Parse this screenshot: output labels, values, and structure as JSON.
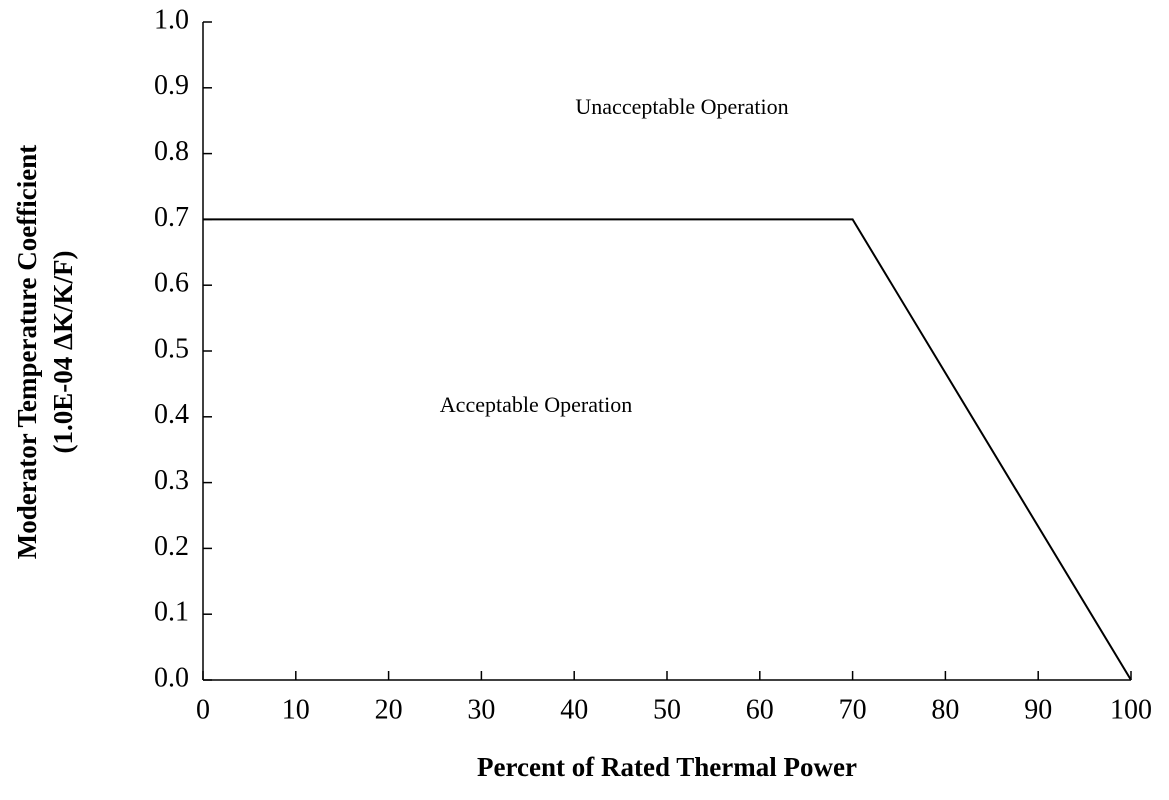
{
  "chart_data": {
    "type": "line",
    "x_label": "Percent of Rated Thermal Power",
    "y_label": [
      "Moderator Temperature  Coefficient",
      "(1.0E-04 ΔK/K/F)"
    ],
    "annotations": [
      "Unacceptable Operation",
      "Acceptable Operation"
    ],
    "x": [
      0,
      70,
      100
    ],
    "values": [
      0.7,
      0.7,
      0
    ],
    "color": "#000000",
    "xlim": [
      0,
      100
    ],
    "xticks": [
      0,
      10,
      20,
      30,
      40,
      50,
      60,
      70,
      80,
      90,
      100
    ],
    "ylim": [
      0,
      1
    ],
    "yticks": [
      {
        "value": 0,
        "label": "0.0"
      },
      0.1,
      0.2,
      0.3,
      0.4,
      0.5,
      0.6,
      0.7,
      0.8,
      0.9,
      {
        "value": 1,
        "label": "1.0"
      }
    ]
  }
}
